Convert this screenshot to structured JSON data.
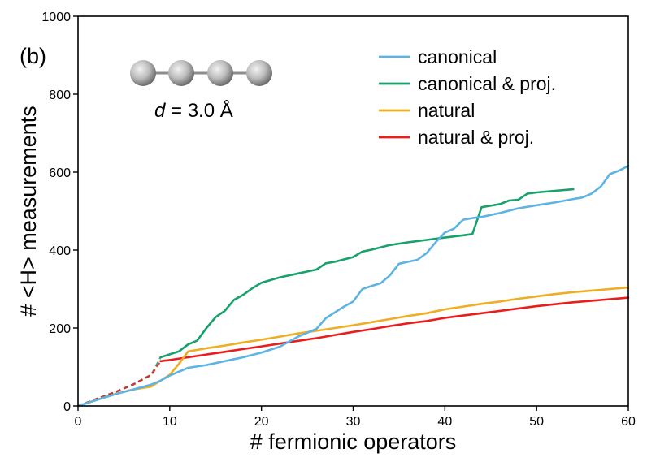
{
  "chart_data": {
    "type": "line",
    "panel_label": "(b)",
    "xlabel": "# fermionic operators",
    "ylabel": "# <H> measurements",
    "xlim": [
      0,
      60
    ],
    "ylim": [
      0,
      1000
    ],
    "xticks": [
      0,
      10,
      20,
      30,
      40,
      50,
      60
    ],
    "yticks": [
      0,
      200,
      400,
      600,
      800,
      1000
    ],
    "grid": false,
    "legend_position": "top-right",
    "annotation": {
      "molecule": "4-atom linear chain",
      "d_symbol": "d",
      "d_rest": " = 3.0 Å"
    },
    "series": [
      {
        "name": "canonical",
        "color": "#5DB3E3",
        "x": [
          0,
          2,
          4,
          6,
          8,
          9,
          10,
          12,
          14,
          16,
          18,
          20,
          22,
          24,
          26,
          27,
          28,
          29,
          30,
          31,
          32,
          33,
          34,
          35,
          36,
          37,
          38,
          39,
          40,
          41,
          42,
          43,
          44,
          46,
          48,
          50,
          52,
          54,
          55,
          56,
          57,
          58,
          59,
          60
        ],
        "y": [
          0,
          15,
          30,
          42,
          55,
          65,
          78,
          98,
          105,
          115,
          125,
          137,
          152,
          178,
          198,
          225,
          240,
          255,
          268,
          300,
          308,
          315,
          335,
          365,
          370,
          375,
          392,
          420,
          445,
          455,
          478,
          482,
          485,
          495,
          507,
          515,
          522,
          531,
          535,
          545,
          563,
          595,
          604,
          616
        ]
      },
      {
        "name": "canonical & proj.",
        "color": "#17A16B",
        "x": [
          9,
          11,
          12,
          13,
          14,
          15,
          16,
          17,
          18,
          19,
          20,
          22,
          24,
          25,
          26,
          27,
          28,
          30,
          31,
          32,
          34,
          36,
          38,
          40,
          41,
          42,
          43,
          44,
          46,
          47,
          48,
          49,
          50,
          52,
          54
        ],
        "y": [
          125,
          140,
          158,
          168,
          200,
          228,
          244,
          272,
          285,
          302,
          316,
          330,
          340,
          345,
          350,
          366,
          370,
          382,
          396,
          401,
          413,
          420,
          426,
          432,
          435,
          438,
          441,
          510,
          518,
          527,
          529,
          545,
          548,
          552,
          556
        ],
        "pre_x": [
          0,
          2,
          4,
          6,
          8,
          9
        ],
        "pre_y": [
          0,
          18,
          35,
          55,
          80,
          125
        ]
      },
      {
        "name": "natural",
        "color": "#EFAE21",
        "x": [
          0,
          2,
          4,
          6,
          8,
          9,
          10,
          11,
          12,
          14,
          16,
          18,
          20,
          22,
          24,
          26,
          28,
          30,
          32,
          34,
          36,
          38,
          40,
          42,
          44,
          46,
          48,
          50,
          52,
          54,
          56,
          58,
          60
        ],
        "y": [
          0,
          15,
          30,
          42,
          50,
          65,
          80,
          108,
          140,
          148,
          155,
          163,
          170,
          178,
          186,
          193,
          200,
          207,
          215,
          223,
          231,
          238,
          248,
          255,
          262,
          268,
          275,
          281,
          287,
          292,
          296,
          300,
          304
        ]
      },
      {
        "name": "natural & proj.",
        "color": "#E81D1C",
        "x": [
          9,
          10,
          12,
          14,
          16,
          18,
          20,
          22,
          24,
          26,
          28,
          30,
          32,
          34,
          36,
          38,
          40,
          42,
          44,
          46,
          48,
          50,
          52,
          54,
          56,
          58,
          60
        ],
        "y": [
          115,
          118,
          125,
          132,
          139,
          146,
          153,
          160,
          167,
          174,
          182,
          190,
          197,
          205,
          212,
          218,
          226,
          232,
          238,
          244,
          250,
          256,
          261,
          266,
          270,
          274,
          278
        ],
        "pre_x": [
          0,
          2,
          4,
          6,
          8,
          9
        ],
        "pre_y": [
          0,
          18,
          35,
          55,
          80,
          115
        ]
      }
    ]
  }
}
